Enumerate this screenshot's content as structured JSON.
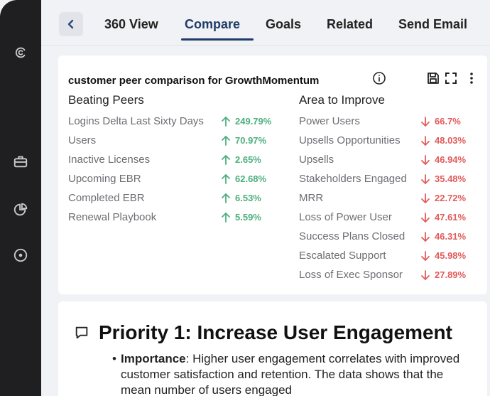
{
  "tabs": [
    {
      "label": "360 View"
    },
    {
      "label": "Compare"
    },
    {
      "label": "Goals"
    },
    {
      "label": "Related"
    },
    {
      "label": "Send Email"
    }
  ],
  "active_tab": "Compare",
  "comparison": {
    "title": "customer peer comparison for GrowthMomentum",
    "beating_heading": "Beating Peers",
    "improve_heading": "Area to Improve",
    "beating": [
      {
        "label": "Logins Delta Last Sixty Days",
        "value": "249.79%"
      },
      {
        "label": "Users",
        "value": "70.97%"
      },
      {
        "label": "Inactive Licenses",
        "value": "2.65%"
      },
      {
        "label": "Upcoming EBR",
        "value": "62.68%"
      },
      {
        "label": "Completed EBR",
        "value": "6.53%"
      },
      {
        "label": "Renewal Playbook",
        "value": "5.59%"
      }
    ],
    "improve": [
      {
        "label": "Power Users",
        "value": "66.7%"
      },
      {
        "label": "Upsells Opportunities",
        "value": "48.03%"
      },
      {
        "label": "Upsells",
        "value": "46.94%"
      },
      {
        "label": "Stakeholders Engaged",
        "value": "35.48%"
      },
      {
        "label": "MRR",
        "value": "22.72%"
      },
      {
        "label": "Loss of Power User",
        "value": "47.61%"
      },
      {
        "label": "Success Plans Closed",
        "value": "46.31%"
      },
      {
        "label": "Escalated Support",
        "value": "45.98%"
      },
      {
        "label": "Loss of Exec Sponsor",
        "value": "27.89%"
      }
    ]
  },
  "priority": {
    "title": "Priority 1: Increase User Engagement",
    "bullet_term": "Importance",
    "bullet_text": ": Higher user engagement correlates with improved customer satisfaction and retention. The data shows that the mean number of users engaged"
  },
  "icons": {
    "rail": [
      "spiral-icon",
      "briefcase-icon",
      "pie-chart-icon",
      "compass-icon"
    ],
    "card_actions": [
      "info-icon",
      "save-icon",
      "expand-icon",
      "more-vertical-icon"
    ],
    "priority": "speech-bubble-icon"
  },
  "colors": {
    "positive": "#4caf7d",
    "negative": "#e35b5b",
    "accent": "#1f3c68"
  }
}
